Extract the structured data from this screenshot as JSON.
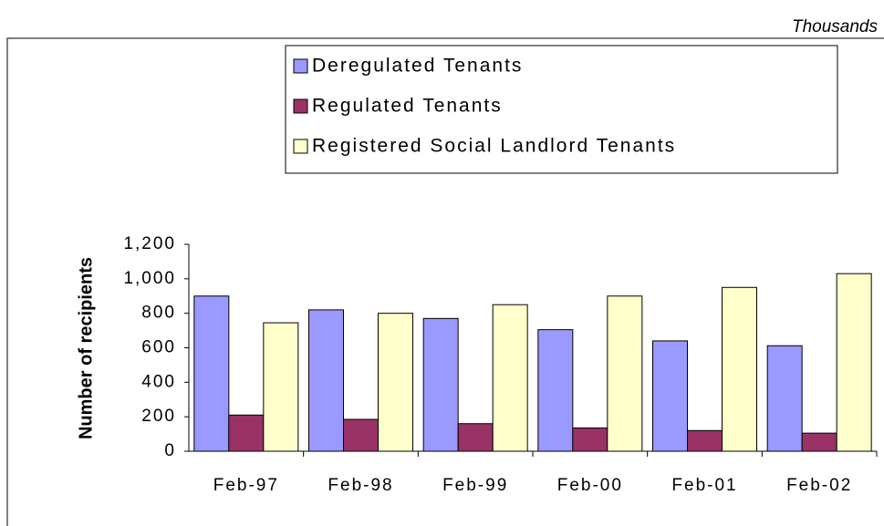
{
  "chart_data": {
    "type": "bar",
    "unit_label": "Thousands",
    "y_label": "Number of recipients",
    "categories": [
      "Feb-97",
      "Feb-98",
      "Feb-99",
      "Feb-00",
      "Feb-01",
      "Feb-02"
    ],
    "series": [
      {
        "name": "Deregulated Tenants",
        "color": "#9999ff",
        "values": [
          900,
          820,
          770,
          705,
          640,
          612
        ]
      },
      {
        "name": "Regulated Tenants",
        "color": "#993366",
        "values": [
          210,
          185,
          160,
          135,
          120,
          105
        ]
      },
      {
        "name": "Registered Social Landlord Tenants",
        "color": "#ffffcc",
        "values": [
          745,
          800,
          850,
          900,
          950,
          1030
        ]
      }
    ],
    "ylim": [
      0,
      1200
    ],
    "yticks": [
      0,
      200,
      400,
      600,
      800,
      {
        "value": 1000,
        "label": "1,000"
      },
      {
        "value": 1200,
        "label": "1,200"
      }
    ],
    "grid": false,
    "legend": "top"
  }
}
